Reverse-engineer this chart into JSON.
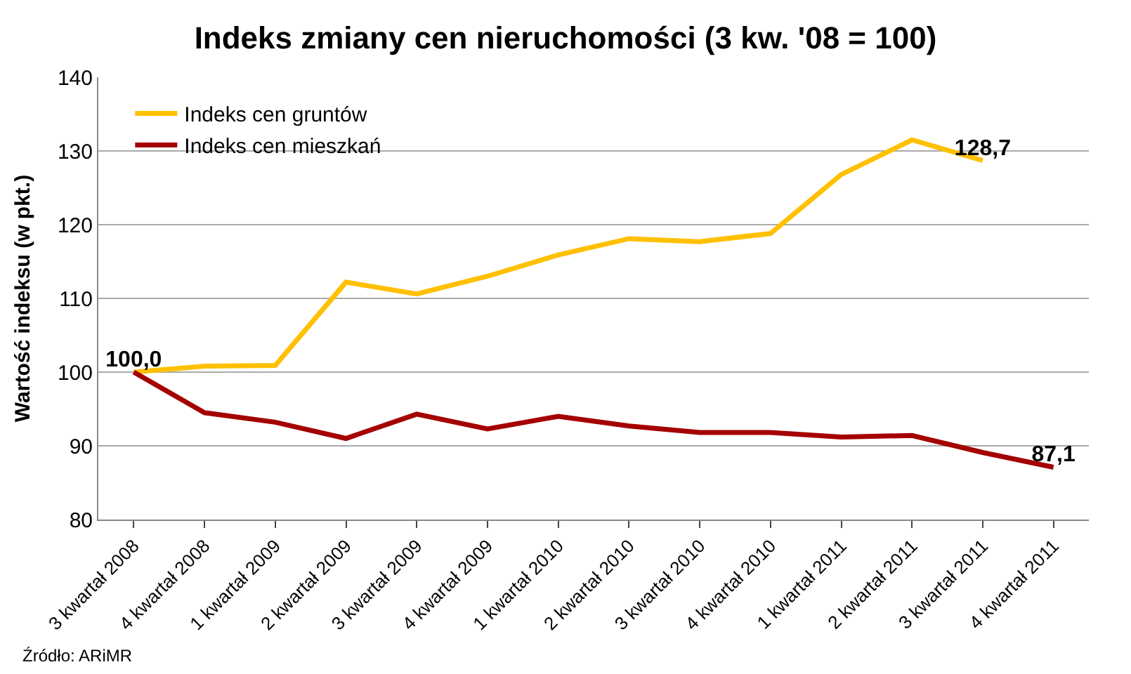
{
  "chart_data": {
    "type": "line",
    "title": "Indeks zmiany cen nieruchomości (3 kw. '08 = 100)",
    "ylabel": "Wartość indeksu (w pkt.)",
    "categories": [
      "3 kwartał 2008",
      "4 kwartał 2008",
      "1 kwartał 2009",
      "2 kwartał 2009",
      "3 kwartał 2009",
      "4 kwartał 2009",
      "1 kwartał 2010",
      "2 kwartał 2010",
      "3 kwartał 2010",
      "4 kwartał 2010",
      "1 kwartał 2011",
      "2 kwartał 2011",
      "3 kwartał 2011",
      "4 kwartał 2011"
    ],
    "series": [
      {
        "name": "Indeks cen gruntów",
        "color": "#ffc000",
        "values": [
          100.0,
          100.8,
          100.9,
          112.2,
          110.6,
          113.0,
          115.9,
          118.1,
          117.7,
          118.8,
          126.8,
          131.5,
          128.7,
          null
        ],
        "value_labels": [
          "100,0",
          null,
          null,
          null,
          null,
          null,
          null,
          null,
          null,
          null,
          null,
          null,
          "128,7",
          null
        ]
      },
      {
        "name": "Indeks cen mieszkań",
        "color": "#a50000",
        "values": [
          100.0,
          94.5,
          93.2,
          91.0,
          94.3,
          92.3,
          94.0,
          92.7,
          91.8,
          91.8,
          91.2,
          91.4,
          89.1,
          87.1
        ],
        "value_labels": [
          null,
          null,
          null,
          null,
          null,
          null,
          null,
          null,
          null,
          null,
          null,
          null,
          null,
          "87,1"
        ]
      }
    ],
    "ylim": [
      80,
      140
    ],
    "yticks": [
      80,
      90,
      100,
      110,
      120,
      130,
      140
    ],
    "grid": "y",
    "legend": "top left",
    "marker": "none",
    "line_style": "solid",
    "annotations": [
      "Źródło: ARiMR"
    ]
  }
}
